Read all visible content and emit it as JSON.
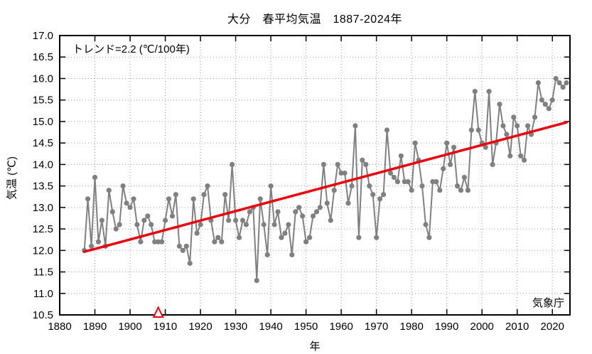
{
  "page_title": "大分　春平均気温　1887-2024年",
  "chart_data": {
    "type": "line",
    "title": "大分　春平均気温　1887-2024年",
    "xlabel": "年",
    "ylabel": "気温 (℃)",
    "annotation": "トレンド=2.2 (℃/100年)",
    "source": "気象庁",
    "xlim": [
      1880,
      2025
    ],
    "ylim": [
      10.5,
      17.0
    ],
    "x_ticks": [
      1880,
      1890,
      1900,
      1910,
      1920,
      1930,
      1940,
      1950,
      1960,
      1970,
      1980,
      1990,
      2000,
      2010,
      2020
    ],
    "y_ticks": [
      10.5,
      11.0,
      11.5,
      12.0,
      12.5,
      13.0,
      13.5,
      14.0,
      14.5,
      15.0,
      15.5,
      16.0,
      16.5,
      17.0
    ],
    "grid": true,
    "legend_position": "none",
    "series_color": "#808080",
    "trend_color": "#e8000d",
    "triangle_marker_year": 1908,
    "trend": {
      "per_100yr": 2.2,
      "start_year": 1887,
      "start_value": 11.97,
      "end_year": 2024,
      "end_value": 14.98
    },
    "start_year": 1887,
    "end_year": 2024,
    "values": [
      12.0,
      13.2,
      12.1,
      13.7,
      12.2,
      12.7,
      12.1,
      13.4,
      12.9,
      12.5,
      12.6,
      13.5,
      13.1,
      13.0,
      13.2,
      12.6,
      12.2,
      12.7,
      12.8,
      12.6,
      12.2,
      12.2,
      12.2,
      12.7,
      13.2,
      12.8,
      13.3,
      12.1,
      12.0,
      12.1,
      11.7,
      13.2,
      12.4,
      12.6,
      13.3,
      13.5,
      12.7,
      12.2,
      12.3,
      12.2,
      13.3,
      12.7,
      14.0,
      12.7,
      12.3,
      12.7,
      12.6,
      12.9,
      13.0,
      11.3,
      13.2,
      12.6,
      11.9,
      13.5,
      12.6,
      12.9,
      12.3,
      12.4,
      12.6,
      11.9,
      12.9,
      13.0,
      12.8,
      12.2,
      12.3,
      12.8,
      12.9,
      13.0,
      14.0,
      13.1,
      12.7,
      13.4,
      14.0,
      13.8,
      13.8,
      13.1,
      13.5,
      14.9,
      12.3,
      14.1,
      14.0,
      13.5,
      13.3,
      12.3,
      13.2,
      13.3,
      14.8,
      13.8,
      13.7,
      13.6,
      14.2,
      13.6,
      13.6,
      13.4,
      14.5,
      14.1,
      13.5,
      12.6,
      12.3,
      13.6,
      13.6,
      13.4,
      13.9,
      14.5,
      14.0,
      14.4,
      13.5,
      13.4,
      13.7,
      13.4,
      14.8,
      15.7,
      14.8,
      14.5,
      14.4,
      15.7,
      14.0,
      14.5,
      15.4,
      14.9,
      14.7,
      14.2,
      15.1,
      14.9,
      14.2,
      14.1,
      14.9,
      14.7,
      15.1,
      15.9,
      15.5,
      15.4,
      15.3,
      15.5,
      16.0,
      15.9,
      15.8,
      15.9
    ]
  }
}
